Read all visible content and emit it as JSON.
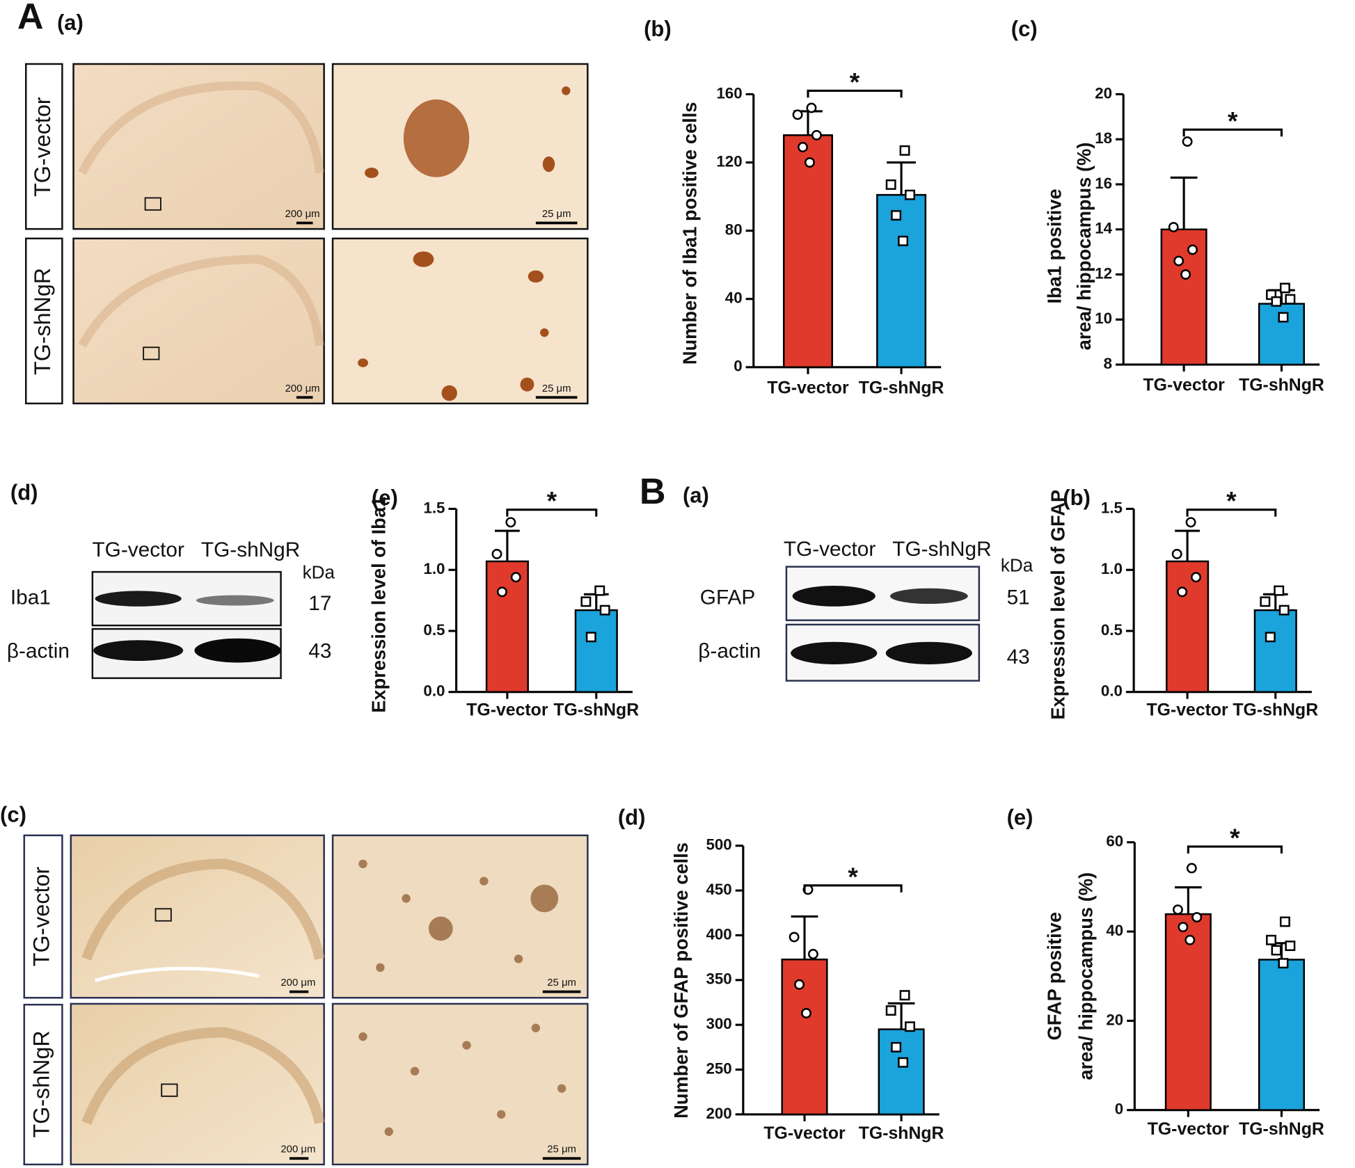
{
  "figure_labels": [
    "A",
    "(a)",
    "(d)",
    "B",
    "(a)",
    "(c)"
  ],
  "micrographs": [
    {
      "rows": [
        "TG-vector",
        "TG-shNgR"
      ],
      "scale_bars": [
        "200 μm",
        "25 μm"
      ]
    },
    {
      "rows": [
        "TG-vector",
        "TG-shNgR"
      ],
      "scale_bars": [
        "200 μm",
        "25 μm"
      ]
    }
  ],
  "blots": [
    {
      "columns": [
        "TG-vector",
        "TG-shNgR"
      ],
      "unit": "kDa",
      "rows": [
        {
          "protein": "Iba1",
          "kda": "17"
        },
        {
          "protein": "β-actin",
          "kda": "43"
        }
      ]
    },
    {
      "columns": [
        "TG-vector",
        "TG-shNgR"
      ],
      "unit": "kDa",
      "rows": [
        {
          "protein": "GFAP",
          "kda": "51"
        },
        {
          "protein": "β-actin",
          "kda": "43"
        }
      ]
    }
  ],
  "chart_data": [
    {
      "type": "bar",
      "label": "(b)",
      "ylabel": [
        "Number of Iba1 positive cells"
      ],
      "categories": [
        "TG-vector",
        "TG-shNgR"
      ],
      "values": [
        136,
        101
      ],
      "errors": [
        14,
        19
      ],
      "points": [
        [
          152,
          148,
          136,
          129,
          120
        ],
        [
          127,
          107,
          101,
          89,
          74
        ]
      ],
      "colors": [
        "#e03a2c",
        "#1ba3dc"
      ],
      "markers": [
        "circle",
        "square"
      ],
      "significance": "*",
      "ylim": [
        0,
        160
      ],
      "yticks": [
        0,
        40,
        80,
        120,
        160
      ]
    },
    {
      "type": "bar",
      "label": "(c)",
      "ylabel": [
        "Iba1 positive",
        "area/ hippocampus (%)"
      ],
      "categories": [
        "TG-vector",
        "TG-shNgR"
      ],
      "values": [
        14.0,
        10.7
      ],
      "errors": [
        2.3,
        0.6
      ],
      "points": [
        [
          17.9,
          14.1,
          13.1,
          12.6,
          12.0
        ],
        [
          11.4,
          11.1,
          10.9,
          10.8,
          10.1
        ]
      ],
      "colors": [
        "#e03a2c",
        "#1ba3dc"
      ],
      "markers": [
        "circle",
        "square"
      ],
      "significance": "*",
      "ylim": [
        8,
        20
      ],
      "yticks": [
        8,
        10,
        12,
        14,
        16,
        18,
        20
      ]
    },
    {
      "type": "bar",
      "label": "(e)",
      "ylabel": [
        "Expression level of Iba1"
      ],
      "categories": [
        "TG-vector",
        "TG-shNgR"
      ],
      "values": [
        1.07,
        0.67
      ],
      "errors": [
        0.25,
        0.13
      ],
      "points": [
        [
          1.39,
          1.13,
          0.94,
          0.82
        ],
        [
          0.83,
          0.74,
          0.67,
          0.45
        ]
      ],
      "colors": [
        "#e03a2c",
        "#1ba3dc"
      ],
      "markers": [
        "circle",
        "square"
      ],
      "significance": "*",
      "ylim": [
        0,
        1.5
      ],
      "yticks": [
        {
          "value": 0,
          "label": "0.0"
        },
        0.5,
        {
          "value": 1,
          "label": "1.0"
        },
        1.5
      ]
    },
    {
      "type": "bar",
      "label": "(b)",
      "ylabel": [
        "Expression level of GFAP"
      ],
      "categories": [
        "TG-vector",
        "TG-shNgR"
      ],
      "values": [
        1.07,
        0.67
      ],
      "errors": [
        0.25,
        0.13
      ],
      "points": [
        [
          1.39,
          1.13,
          0.94,
          0.82
        ],
        [
          0.83,
          0.74,
          0.67,
          0.45
        ]
      ],
      "colors": [
        "#e03a2c",
        "#1ba3dc"
      ],
      "markers": [
        "circle",
        "square"
      ],
      "significance": "*",
      "ylim": [
        0,
        1.5
      ],
      "yticks": [
        {
          "value": 0,
          "label": "0.0"
        },
        0.5,
        {
          "value": 1,
          "label": "1.0"
        },
        1.5
      ]
    },
    {
      "type": "bar",
      "label": "(d)",
      "ylabel": [
        "Number of GFAP positive cells"
      ],
      "categories": [
        "TG-vector",
        "TG-shNgR"
      ],
      "values": [
        373,
        295
      ],
      "errors": [
        48,
        29
      ],
      "points": [
        [
          451,
          398,
          379,
          345,
          313
        ],
        [
          333,
          316,
          298,
          275,
          258
        ]
      ],
      "colors": [
        "#e03a2c",
        "#1ba3dc"
      ],
      "markers": [
        "circle",
        "square"
      ],
      "significance": "*",
      "ylim": [
        200,
        500
      ],
      "yticks": [
        200,
        250,
        300,
        350,
        400,
        450,
        500
      ]
    },
    {
      "type": "bar",
      "label": "(e)",
      "ylabel": [
        "GFAP positive",
        "area/ hippocampus  (%)"
      ],
      "categories": [
        "TG-vector",
        "TG-shNgR"
      ],
      "values": [
        43.9,
        33.7
      ],
      "errors": [
        6.0,
        3.7
      ],
      "points": [
        [
          54.2,
          44.9,
          43.2,
          41.0,
          38.1
        ],
        [
          42.2,
          38.1,
          36.8,
          35.8,
          32.9
        ]
      ],
      "colors": [
        "#e03a2c",
        "#1ba3dc"
      ],
      "markers": [
        "circle",
        "square"
      ],
      "significance": "*",
      "ylim": [
        0,
        60
      ],
      "yticks": [
        0,
        20,
        40,
        60
      ]
    }
  ]
}
